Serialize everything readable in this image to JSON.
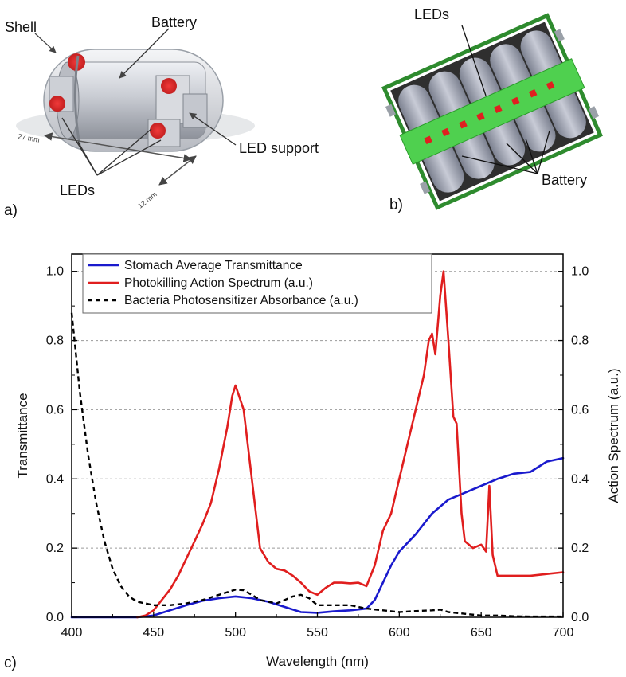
{
  "panel_a": {
    "panel_label": "a)",
    "labels": {
      "shell": "Shell",
      "battery": "Battery",
      "led_support": "LED support",
      "leds": "LEDs"
    },
    "dims": {
      "length": "27 mm",
      "width": "12 mm"
    }
  },
  "panel_b": {
    "panel_label": "b)",
    "labels": {
      "leds": "LEDs",
      "battery": "Battery"
    }
  },
  "panel_c": {
    "panel_label": "c)"
  },
  "colors": {
    "transmittance": "#1a1acd",
    "action": "#e01e1e",
    "absorbance": "#000000",
    "grid": "#9a9a9a",
    "pcb": "#4fd04f"
  },
  "chart_data": {
    "type": "line",
    "xlabel": "Wavelength (nm)",
    "ylabel": "Transmittance",
    "ylabel_right": "Action Spectrum (a.u.)",
    "xlim": [
      400,
      700
    ],
    "ylim": [
      0,
      1.05
    ],
    "xticks": [
      "400",
      "450",
      "500",
      "550",
      "600",
      "650",
      "700"
    ],
    "yticks": [
      "0.0",
      "0.2",
      "0.4",
      "0.6",
      "0.8",
      "1.0"
    ],
    "yticks_right": [
      "0.0",
      "0.2",
      "0.4",
      "0.6",
      "0.8",
      "1.0"
    ],
    "grid": "horizontal dashed",
    "legend_position": "top-left",
    "series": [
      {
        "name": "Stomach Average Transmittance",
        "style": "solid",
        "color": "#1a1acd",
        "x": [
          400,
          440,
          450,
          460,
          470,
          480,
          490,
          500,
          510,
          520,
          530,
          540,
          550,
          560,
          570,
          580,
          585,
          590,
          595,
          600,
          610,
          620,
          630,
          640,
          650,
          660,
          670,
          680,
          690,
          700
        ],
        "y": [
          0,
          0,
          0.005,
          0.02,
          0.035,
          0.048,
          0.055,
          0.06,
          0.055,
          0.045,
          0.03,
          0.015,
          0.013,
          0.017,
          0.02,
          0.025,
          0.05,
          0.1,
          0.15,
          0.19,
          0.24,
          0.3,
          0.34,
          0.36,
          0.38,
          0.4,
          0.415,
          0.42,
          0.45,
          0.46
        ]
      },
      {
        "name": "Photokilling Action Spectrum (a.u.)",
        "style": "solid",
        "color": "#e01e1e",
        "x": [
          440,
          445,
          450,
          455,
          460,
          465,
          470,
          475,
          480,
          485,
          490,
          495,
          498,
          500,
          505,
          510,
          515,
          520,
          525,
          530,
          535,
          540,
          545,
          550,
          555,
          560,
          565,
          570,
          575,
          580,
          585,
          590,
          595,
          600,
          605,
          610,
          613,
          615,
          618,
          620,
          622,
          625,
          627,
          630,
          633,
          635,
          638,
          640,
          645,
          650,
          653,
          655,
          657,
          660,
          670,
          680,
          690,
          700
        ],
        "y": [
          0,
          0.005,
          0.02,
          0.05,
          0.08,
          0.12,
          0.17,
          0.22,
          0.27,
          0.33,
          0.43,
          0.55,
          0.64,
          0.67,
          0.6,
          0.4,
          0.2,
          0.16,
          0.14,
          0.135,
          0.12,
          0.1,
          0.075,
          0.065,
          0.085,
          0.1,
          0.1,
          0.098,
          0.1,
          0.09,
          0.15,
          0.25,
          0.3,
          0.4,
          0.5,
          0.6,
          0.66,
          0.7,
          0.8,
          0.82,
          0.76,
          0.93,
          1.0,
          0.8,
          0.58,
          0.56,
          0.3,
          0.22,
          0.2,
          0.21,
          0.19,
          0.38,
          0.18,
          0.12,
          0.12,
          0.12,
          0.125,
          0.13
        ]
      },
      {
        "name": "Bacteria Photosensitizer Absorbance (a.u.)",
        "style": "dashed",
        "color": "#000000",
        "x": [
          400,
          405,
          410,
          415,
          420,
          425,
          430,
          435,
          440,
          445,
          450,
          460,
          470,
          480,
          490,
          500,
          505,
          510,
          515,
          520,
          525,
          530,
          535,
          540,
          545,
          550,
          560,
          570,
          580,
          590,
          600,
          610,
          620,
          625,
          630,
          640,
          650,
          660,
          670,
          680,
          690,
          700
        ],
        "y": [
          0.88,
          0.65,
          0.47,
          0.33,
          0.22,
          0.14,
          0.09,
          0.06,
          0.045,
          0.04,
          0.035,
          0.035,
          0.04,
          0.05,
          0.065,
          0.08,
          0.078,
          0.065,
          0.05,
          0.045,
          0.04,
          0.05,
          0.06,
          0.065,
          0.055,
          0.035,
          0.035,
          0.035,
          0.025,
          0.02,
          0.015,
          0.018,
          0.02,
          0.022,
          0.015,
          0.01,
          0.005,
          0.005,
          0.003,
          0.002,
          0.002,
          0.002
        ]
      }
    ]
  }
}
